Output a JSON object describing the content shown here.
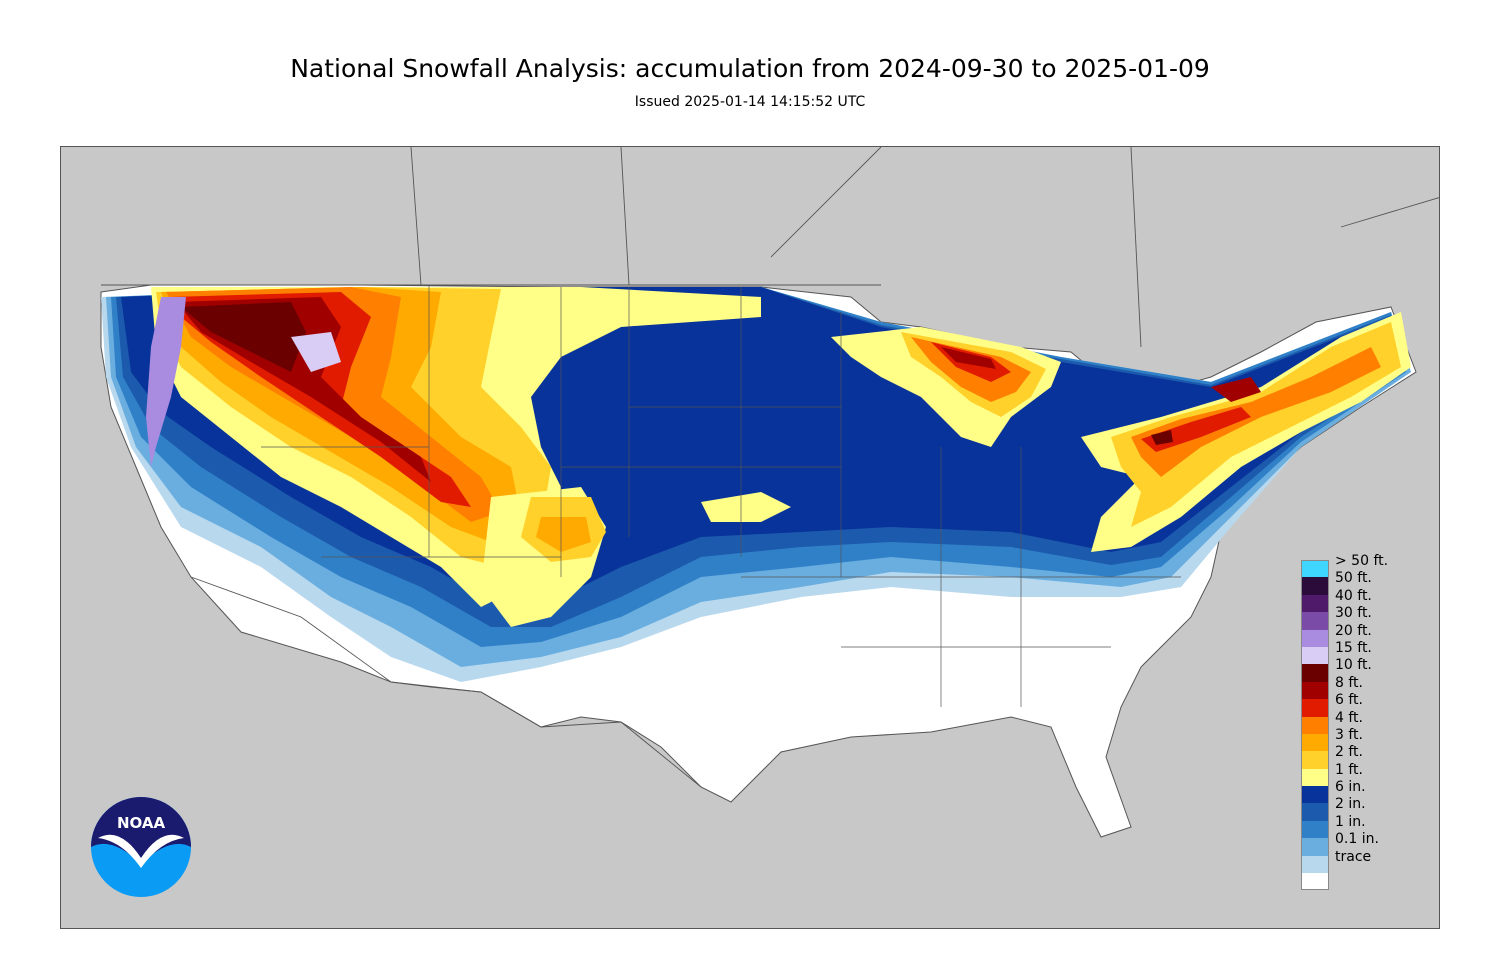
{
  "title": "National Snowfall Analysis: accumulation from 2024-09-30 to 2025-01-09",
  "subtitle": "Issued 2025-01-14 14:15:52 UTC",
  "logo": {
    "text": "NOAA",
    "icon": "noaa-logo-icon"
  },
  "colors": {
    "ocean_land_background": "#c8c8c8",
    "land_no_snow": "#ffffff",
    "border_lines": "#555555"
  },
  "legend": [
    {
      "label": "> 50 ft.",
      "color": "#3ed6ff"
    },
    {
      "label": "50 ft.",
      "color": "#2b0b3a"
    },
    {
      "label": "40 ft.",
      "color": "#4f1a6a"
    },
    {
      "label": "30 ft.",
      "color": "#7a4ca8"
    },
    {
      "label": "20 ft.",
      "color": "#a98be0"
    },
    {
      "label": "15 ft.",
      "color": "#d9ccf5"
    },
    {
      "label": "10 ft.",
      "color": "#6a0000"
    },
    {
      "label": "8 ft.",
      "color": "#a00000"
    },
    {
      "label": "6 ft.",
      "color": "#e01b00"
    },
    {
      "label": "4 ft.",
      "color": "#ff7f00"
    },
    {
      "label": "3 ft.",
      "color": "#ffaa00"
    },
    {
      "label": "2 ft.",
      "color": "#ffd12a"
    },
    {
      "label": "1 ft.",
      "color": "#ffff88"
    },
    {
      "label": "6 in.",
      "color": "#08339a"
    },
    {
      "label": "2 in.",
      "color": "#1c5aad"
    },
    {
      "label": "1 in.",
      "color": "#3080c8"
    },
    {
      "label": "0.1 in.",
      "color": "#6aaee0"
    },
    {
      "label": "trace",
      "color": "#b8d8ee"
    },
    {
      "label": "",
      "color": "#ffffff"
    }
  ]
}
